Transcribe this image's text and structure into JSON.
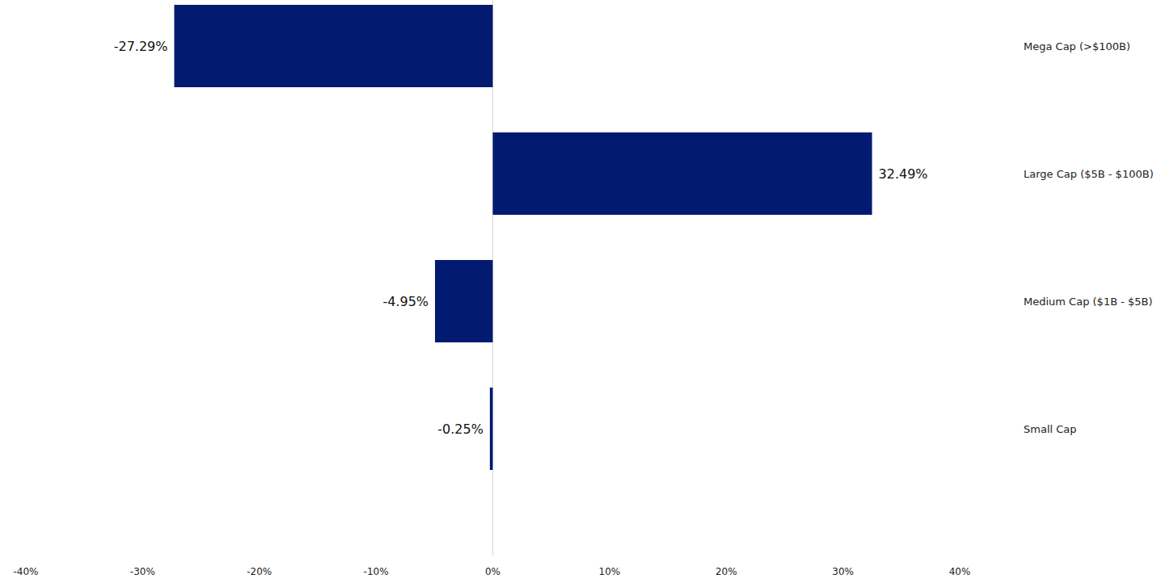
{
  "chart_data": {
    "type": "bar",
    "orientation": "horizontal",
    "categories": [
      "Mega Cap (>$100B)",
      "Large Cap ($5B - $100B)",
      "Medium Cap ($1B - $5B)",
      "Small Cap"
    ],
    "values": [
      -27.29,
      32.49,
      -4.95,
      -0.25
    ],
    "value_labels": [
      "-27.29%",
      "32.49%",
      "-4.95%",
      "-0.25%"
    ],
    "color": "#021b71",
    "xlim": [
      -40,
      40
    ],
    "xticks": [
      {
        "value": -40,
        "label": "-40%"
      },
      {
        "value": -30,
        "label": "-30%"
      },
      {
        "value": -20,
        "label": "-20%"
      },
      {
        "value": -10,
        "label": "-10%"
      },
      {
        "value": 0,
        "label": "0%"
      },
      {
        "value": 10,
        "label": "10%"
      },
      {
        "value": 20,
        "label": "20%"
      },
      {
        "value": 30,
        "label": "30%"
      },
      {
        "value": 40,
        "label": "40%"
      }
    ],
    "grid": false,
    "data_labels": true
  }
}
